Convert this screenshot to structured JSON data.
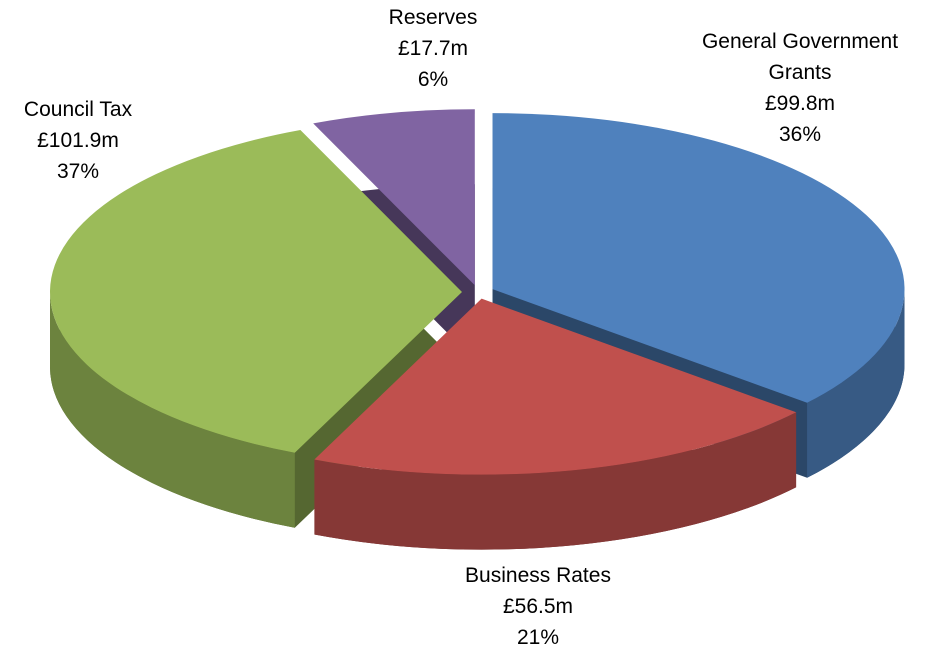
{
  "chart_data": {
    "type": "pie",
    "categories": [
      "General Government Grants",
      "Business Rates",
      "Council Tax",
      "Reserves"
    ],
    "values": [
      99.8,
      56.5,
      101.9,
      17.7
    ],
    "value_labels": [
      "£99.8m",
      "£56.5m",
      "£101.9m",
      "£17.7m"
    ],
    "percentages": [
      36,
      21,
      37,
      6
    ],
    "percentage_labels": [
      "36%",
      "21%",
      "37%",
      "6%"
    ],
    "colors": [
      "#4f81bd",
      "#c0504d",
      "#9bbb59",
      "#8064a2"
    ]
  }
}
